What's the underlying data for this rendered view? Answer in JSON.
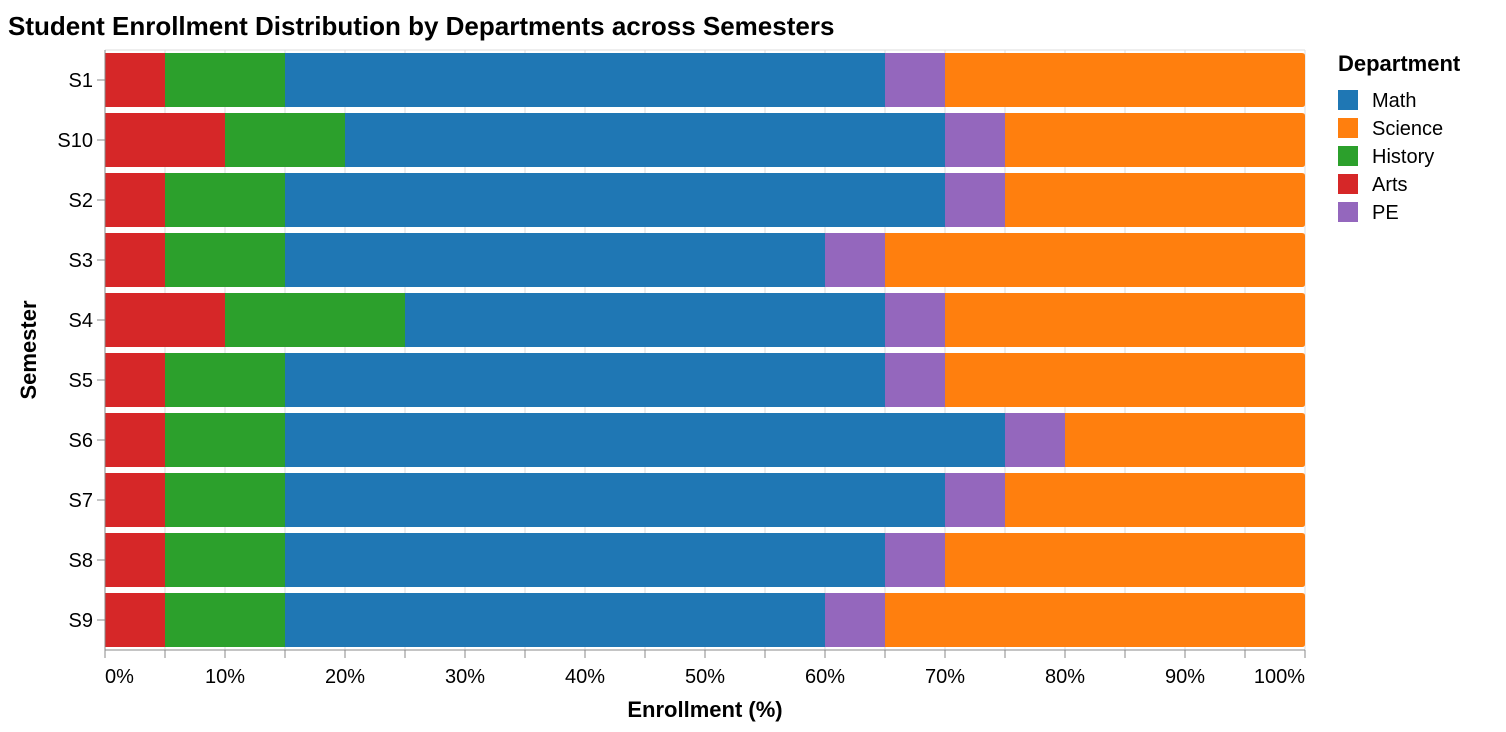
{
  "chart_data": {
    "type": "bar",
    "orientation": "horizontal",
    "stacked": "normalized",
    "title": "Student Enrollment Distribution by Departments across Semesters",
    "xlabel": "Enrollment (%)",
    "ylabel": "Semester",
    "xlim": [
      0,
      100
    ],
    "x_ticks": [
      "0%",
      "10%",
      "20%",
      "30%",
      "40%",
      "50%",
      "60%",
      "70%",
      "80%",
      "90%",
      "100%"
    ],
    "categories": [
      "S1",
      "S10",
      "S2",
      "S3",
      "S4",
      "S5",
      "S6",
      "S7",
      "S8",
      "S9"
    ],
    "stack_order": [
      "Arts",
      "History",
      "Math",
      "PE",
      "Science"
    ],
    "series": [
      {
        "name": "Math",
        "color": "#1f77b4",
        "values": [
          50,
          50,
          55,
          45,
          40,
          50,
          60,
          55,
          50,
          45
        ]
      },
      {
        "name": "Science",
        "color": "#ff7f0e",
        "values": [
          30,
          25,
          25,
          35,
          30,
          30,
          20,
          25,
          30,
          35
        ]
      },
      {
        "name": "History",
        "color": "#2ca02c",
        "values": [
          10,
          10,
          10,
          10,
          15,
          10,
          10,
          10,
          10,
          10
        ]
      },
      {
        "name": "Arts",
        "color": "#d62728",
        "values": [
          5,
          10,
          5,
          5,
          10,
          5,
          5,
          5,
          5,
          5
        ]
      },
      {
        "name": "PE",
        "color": "#9467bd",
        "values": [
          5,
          5,
          5,
          5,
          5,
          5,
          5,
          5,
          5,
          5
        ]
      }
    ],
    "grid": true,
    "legend": {
      "title": "Department",
      "position": "right"
    }
  }
}
